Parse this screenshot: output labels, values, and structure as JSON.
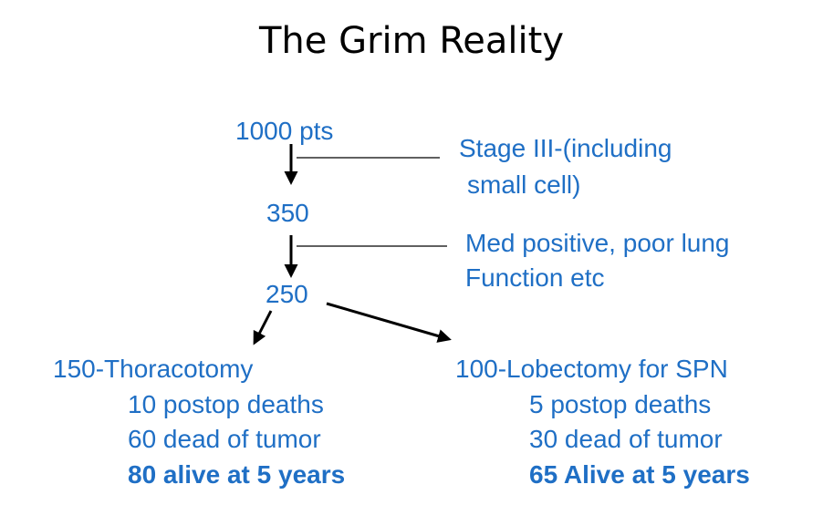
{
  "title": "The Grim Reality",
  "colors": {
    "text": "#1F6FC5",
    "title": "#000000",
    "lines": "#000000"
  },
  "flow": {
    "n1000": "1000 pts",
    "n350": "350",
    "n250": "250",
    "exclusion1": [
      "Stage III-(including",
      "small cell)"
    ],
    "exclusion2": [
      "Med positive, poor lung",
      "Function etc"
    ]
  },
  "left_branch": {
    "heading": "150-Thoracotomy",
    "items": [
      "10 postop deaths",
      "60 dead of tumor"
    ],
    "outcome": "80 alive at 5 years"
  },
  "right_branch": {
    "heading": "100-Lobectomy for SPN",
    "items": [
      "5 postop deaths",
      "30 dead of tumor"
    ],
    "outcome": "65 Alive at 5 years"
  }
}
